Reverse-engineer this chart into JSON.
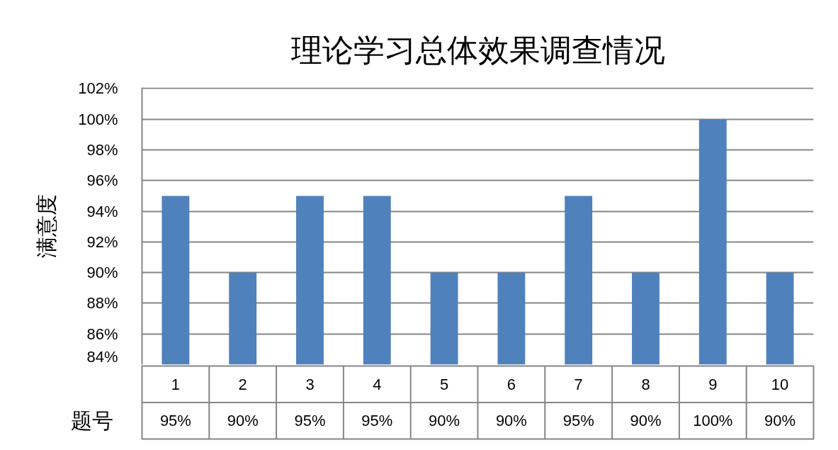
{
  "chart_data": {
    "type": "bar",
    "title": "理论学习总体效果调查情况",
    "xlabel": "题号",
    "ylabel": "满意度",
    "categories": [
      "1",
      "2",
      "3",
      "4",
      "5",
      "6",
      "7",
      "8",
      "9",
      "10"
    ],
    "values": [
      95,
      90,
      95,
      95,
      90,
      90,
      95,
      90,
      100,
      90
    ],
    "value_labels": [
      "95%",
      "90%",
      "95%",
      "95%",
      "90%",
      "90%",
      "95%",
      "90%",
      "100%",
      "90%"
    ],
    "color": "#4f81bd",
    "ylim": [
      84,
      102
    ],
    "yticks": [
      {
        "value": 84,
        "label": "84%"
      },
      {
        "value": 86,
        "label": "86%"
      },
      {
        "value": 88,
        "label": "88%"
      },
      {
        "value": 90,
        "label": "90%"
      },
      {
        "value": 92,
        "label": "92%"
      },
      {
        "value": 94,
        "label": "94%"
      },
      {
        "value": 96,
        "label": "96%"
      },
      {
        "value": 98,
        "label": "98%"
      },
      {
        "value": 100,
        "label": "100%"
      },
      {
        "value": 102,
        "label": "102%"
      }
    ],
    "grid": "y"
  }
}
